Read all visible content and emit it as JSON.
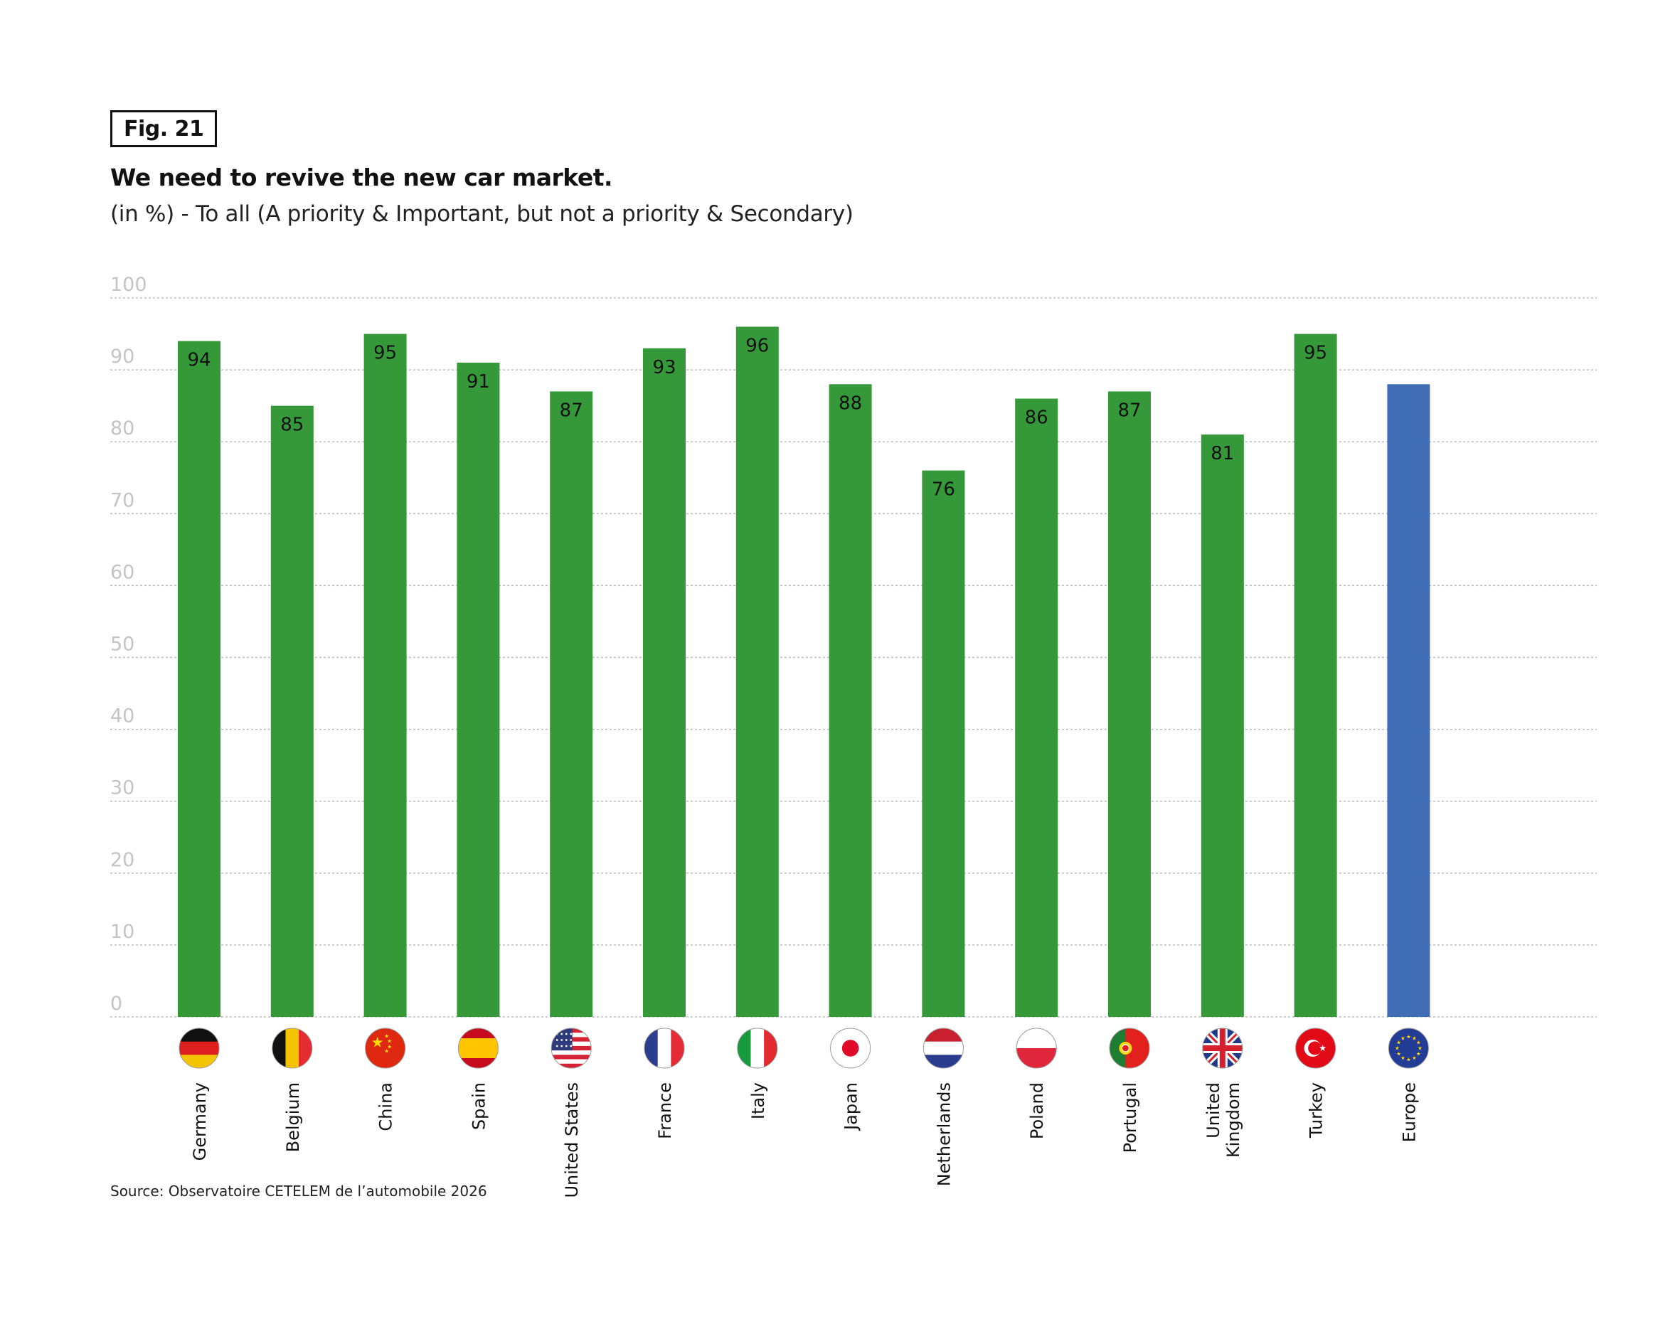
{
  "figure": {
    "fig_label": "Fig. 21",
    "title": "We need to revive the new car market.",
    "subtitle": "(in %) - To all (A priority & Important, but not a priority & Secondary)",
    "source": "Source: Observatoire CETELEM de l’automobile 2026"
  },
  "colors": {
    "country_bar": "#35993a",
    "europe_bar": "#3e6db5",
    "gridline": "#bdbdbd",
    "tick_text": "#c4c4c4"
  },
  "chart_data": {
    "type": "bar",
    "title": "We need to revive the new car market.",
    "subtitle": "(in %) - To all (A priority & Important, but not a priority & Secondary)",
    "xlabel": "",
    "ylabel": "",
    "ylim": [
      0,
      100
    ],
    "yticks": [
      0,
      10,
      20,
      30,
      40,
      50,
      60,
      70,
      80,
      90,
      100
    ],
    "grid": true,
    "categories": [
      "Germany",
      "Belgium",
      "China",
      "Spain",
      "United States",
      "France",
      "Italy",
      "Japan",
      "Netherlands",
      "Poland",
      "Portugal",
      "United Kingdom",
      "Turkey",
      "Europe"
    ],
    "category_lines": [
      [
        "Germany"
      ],
      [
        "Belgium"
      ],
      [
        "China"
      ],
      [
        "Spain"
      ],
      [
        "United States"
      ],
      [
        "France"
      ],
      [
        "Italy"
      ],
      [
        "Japan"
      ],
      [
        "Netherlands"
      ],
      [
        "Poland"
      ],
      [
        "Portugal"
      ],
      [
        "United",
        "Kingdom"
      ],
      [
        "Turkey"
      ],
      [
        "Europe"
      ]
    ],
    "flags": [
      "germany-flag-icon",
      "belgium-flag-icon",
      "china-flag-icon",
      "spain-flag-icon",
      "united-states-flag-icon",
      "france-flag-icon",
      "italy-flag-icon",
      "japan-flag-icon",
      "netherlands-flag-icon",
      "poland-flag-icon",
      "portugal-flag-icon",
      "united-kingdom-flag-icon",
      "turkey-flag-icon",
      "europe-flag-icon"
    ],
    "values": [
      94,
      85,
      95,
      91,
      87,
      93,
      96,
      88,
      76,
      86,
      87,
      81,
      95,
      88
    ],
    "value_labels": [
      "94",
      "85",
      "95",
      "91",
      "87",
      "93",
      "96",
      "88",
      "76",
      "86",
      "87",
      "81",
      "95",
      null
    ],
    "highlight": "Europe"
  }
}
